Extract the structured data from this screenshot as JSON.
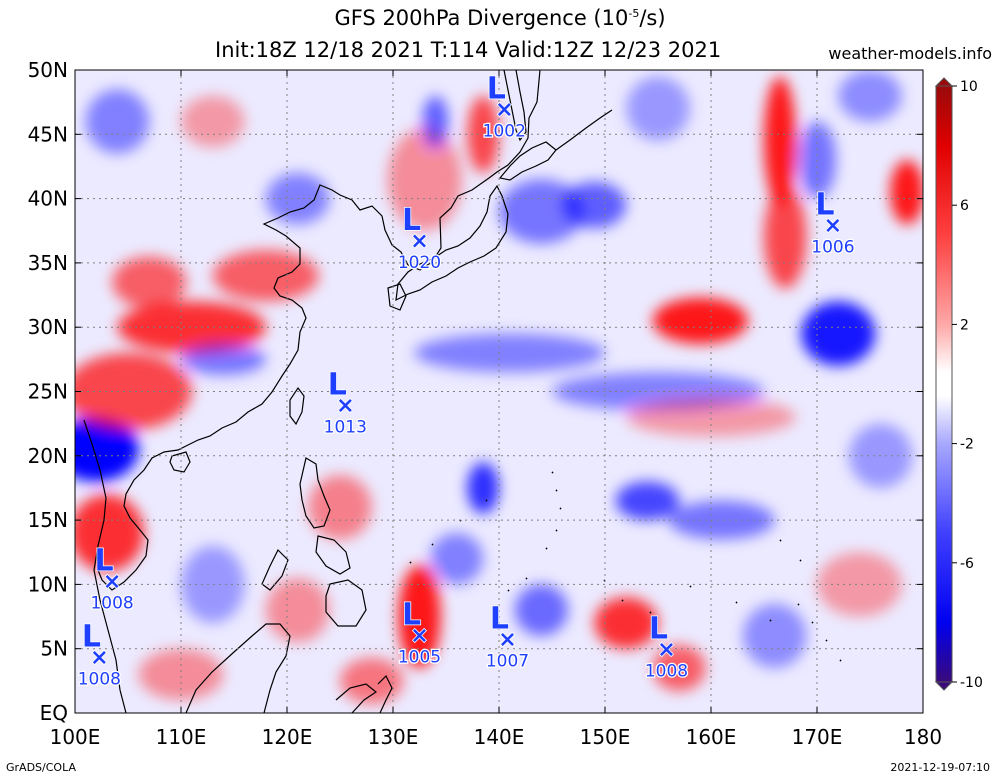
{
  "title": {
    "line1_prefix": "GFS 200hPa Divergence (10",
    "line1_exp": "-5",
    "line1_suffix": "/s)",
    "line2": "Init:18Z 12/18 2021 T:114 Valid:12Z 12/23 2021"
  },
  "site": "weather-models.info",
  "footer": {
    "left": "GrADS/COLA",
    "right": "2021-12-19-07:10"
  },
  "axes": {
    "lon_min": 100,
    "lon_max": 180,
    "lat_min": 0,
    "lat_max": 50,
    "lon_ticks": [
      {
        "value": 100,
        "label": "100E"
      },
      {
        "value": 110,
        "label": "110E"
      },
      {
        "value": 120,
        "label": "120E"
      },
      {
        "value": 130,
        "label": "130E"
      },
      {
        "value": 140,
        "label": "140E"
      },
      {
        "value": 150,
        "label": "150E"
      },
      {
        "value": 160,
        "label": "160E"
      },
      {
        "value": 170,
        "label": "170E"
      },
      {
        "value": 180,
        "label": "180"
      }
    ],
    "lat_ticks": [
      {
        "value": 0,
        "label": "EQ"
      },
      {
        "value": 5,
        "label": "5N"
      },
      {
        "value": 10,
        "label": "10N"
      },
      {
        "value": 15,
        "label": "15N"
      },
      {
        "value": 20,
        "label": "20N"
      },
      {
        "value": 25,
        "label": "25N"
      },
      {
        "value": 30,
        "label": "30N"
      },
      {
        "value": 35,
        "label": "35N"
      },
      {
        "value": 40,
        "label": "40N"
      },
      {
        "value": 45,
        "label": "45N"
      },
      {
        "value": 50,
        "label": "50N"
      }
    ]
  },
  "colorbar": {
    "min": -10,
    "max": 10,
    "ticks": [
      {
        "value": 10,
        "label": "10"
      },
      {
        "value": 6,
        "label": "6"
      },
      {
        "value": 2,
        "label": "2"
      },
      {
        "value": -2,
        "label": "-2"
      },
      {
        "value": -6,
        "label": "-6"
      },
      {
        "value": -10,
        "label": "-10"
      }
    ],
    "colors": [
      "#3a0a7a",
      "#0000f0",
      "#2a2aff",
      "#5a5aff",
      "#8080ff",
      "#a8a8ff",
      "#d0d0ff",
      "#ffffff",
      "#ffd0d0",
      "#ffa8a8",
      "#ff8080",
      "#ff5050",
      "#ff2020",
      "#e00000",
      "#b01010"
    ]
  },
  "lows": [
    {
      "lon": 140.5,
      "lat": 47.0,
      "pressure": "1002"
    },
    {
      "lon": 171.5,
      "lat": 38.0,
      "pressure": "1006"
    },
    {
      "lon": 132.5,
      "lat": 36.8,
      "pressure": "1020"
    },
    {
      "lon": 125.5,
      "lat": 24.0,
      "pressure": "1013"
    },
    {
      "lon": 103.5,
      "lat": 10.3,
      "pressure": "1008"
    },
    {
      "lon": 102.3,
      "lat": 4.4,
      "pressure": "1008"
    },
    {
      "lon": 132.5,
      "lat": 6.1,
      "pressure": "1005"
    },
    {
      "lon": 140.8,
      "lat": 5.8,
      "pressure": "1007"
    },
    {
      "lon": 155.8,
      "lat": 5.0,
      "pressure": "1008"
    }
  ],
  "low_symbol": "L",
  "center_marker": "×",
  "colors": {
    "low": "#1f3fff",
    "positive": "#ff0000",
    "negative": "#0000ff",
    "grid": "#808080"
  },
  "field_blobs": [
    {
      "lon": 102,
      "lat": 20.5,
      "rx": 4.0,
      "ry": 2.5,
      "v": -1.0
    },
    {
      "lon": 103,
      "lat": 14,
      "rx": 3.5,
      "ry": 3.0,
      "v": 0.8
    },
    {
      "lon": 105,
      "lat": 25,
      "rx": 6.0,
      "ry": 3.0,
      "v": 0.7
    },
    {
      "lon": 111,
      "lat": 30,
      "rx": 7.0,
      "ry": 2.0,
      "v": 0.8
    },
    {
      "lon": 118,
      "lat": 34,
      "rx": 5.0,
      "ry": 2.0,
      "v": 0.6
    },
    {
      "lon": 107,
      "lat": 33.5,
      "rx": 3.5,
      "ry": 2.0,
      "v": 0.6
    },
    {
      "lon": 114,
      "lat": 27.5,
      "rx": 4.0,
      "ry": 1.2,
      "v": -0.5
    },
    {
      "lon": 133,
      "lat": 41.5,
      "rx": 3.5,
      "ry": 4.0,
      "v": 0.4
    },
    {
      "lon": 138.5,
      "lat": 45,
      "rx": 1.5,
      "ry": 3.0,
      "v": 0.7
    },
    {
      "lon": 134,
      "lat": 46,
      "rx": 1.2,
      "ry": 2.0,
      "v": -0.6
    },
    {
      "lon": 144,
      "lat": 39,
      "rx": 4.0,
      "ry": 2.5,
      "v": -0.5
    },
    {
      "lon": 149,
      "lat": 39.5,
      "rx": 3.0,
      "ry": 1.8,
      "v": -0.6
    },
    {
      "lon": 159,
      "lat": 30.5,
      "rx": 4.5,
      "ry": 1.8,
      "v": 0.9
    },
    {
      "lon": 172,
      "lat": 29.5,
      "rx": 3.5,
      "ry": 2.5,
      "v": -0.9
    },
    {
      "lon": 166.5,
      "lat": 44.5,
      "rx": 1.5,
      "ry": 5.0,
      "v": 0.9
    },
    {
      "lon": 167,
      "lat": 37,
      "rx": 2.0,
      "ry": 4.0,
      "v": 0.7
    },
    {
      "lon": 178.5,
      "lat": 40.5,
      "rx": 1.6,
      "ry": 2.5,
      "v": 0.9
    },
    {
      "lon": 175,
      "lat": 48,
      "rx": 3.0,
      "ry": 2.0,
      "v": -0.4
    },
    {
      "lon": 170,
      "lat": 43,
      "rx": 1.8,
      "ry": 3.0,
      "v": -0.5
    },
    {
      "lon": 141,
      "lat": 28,
      "rx": 9.0,
      "ry": 1.5,
      "v": -0.45
    },
    {
      "lon": 155,
      "lat": 25,
      "rx": 10.0,
      "ry": 1.5,
      "v": -0.45
    },
    {
      "lon": 160,
      "lat": 23,
      "rx": 8.0,
      "ry": 1.5,
      "v": 0.35
    },
    {
      "lon": 138.5,
      "lat": 17.5,
      "rx": 1.5,
      "ry": 2.0,
      "v": -0.8
    },
    {
      "lon": 154,
      "lat": 16.5,
      "rx": 3.0,
      "ry": 1.5,
      "v": -0.7
    },
    {
      "lon": 161,
      "lat": 15,
      "rx": 5.0,
      "ry": 1.5,
      "v": -0.5
    },
    {
      "lon": 132.5,
      "lat": 7.5,
      "rx": 2.0,
      "ry": 4.0,
      "v": 0.9
    },
    {
      "lon": 144,
      "lat": 8,
      "rx": 2.5,
      "ry": 2.0,
      "v": -0.55
    },
    {
      "lon": 152,
      "lat": 7,
      "rx": 3.0,
      "ry": 2.0,
      "v": 0.8
    },
    {
      "lon": 157,
      "lat": 3.5,
      "rx": 2.5,
      "ry": 1.8,
      "v": 0.6
    },
    {
      "lon": 128,
      "lat": 2.5,
      "rx": 3.0,
      "ry": 1.8,
      "v": 0.5
    },
    {
      "lon": 136,
      "lat": 12,
      "rx": 2.5,
      "ry": 2.0,
      "v": -0.45
    },
    {
      "lon": 121,
      "lat": 8,
      "rx": 3.0,
      "ry": 2.5,
      "v": 0.4
    },
    {
      "lon": 113,
      "lat": 10,
      "rx": 3.0,
      "ry": 3.0,
      "v": -0.35
    },
    {
      "lon": 110,
      "lat": 3,
      "rx": 4.0,
      "ry": 2.0,
      "v": 0.4
    },
    {
      "lon": 166,
      "lat": 6,
      "rx": 3.0,
      "ry": 2.5,
      "v": -0.4
    },
    {
      "lon": 174,
      "lat": 10,
      "rx": 4.0,
      "ry": 2.5,
      "v": 0.35
    },
    {
      "lon": 125,
      "lat": 16,
      "rx": 3.0,
      "ry": 2.5,
      "v": 0.45
    },
    {
      "lon": 104,
      "lat": 46,
      "rx": 3.0,
      "ry": 2.5,
      "v": -0.45
    },
    {
      "lon": 113,
      "lat": 46,
      "rx": 3.0,
      "ry": 2.0,
      "v": 0.35
    },
    {
      "lon": 155,
      "lat": 47,
      "rx": 3.0,
      "ry": 2.5,
      "v": -0.35
    },
    {
      "lon": 121,
      "lat": 40,
      "rx": 3.0,
      "ry": 2.0,
      "v": -0.45
    },
    {
      "lon": 176,
      "lat": 20,
      "rx": 3.0,
      "ry": 2.5,
      "v": -0.35
    }
  ]
}
